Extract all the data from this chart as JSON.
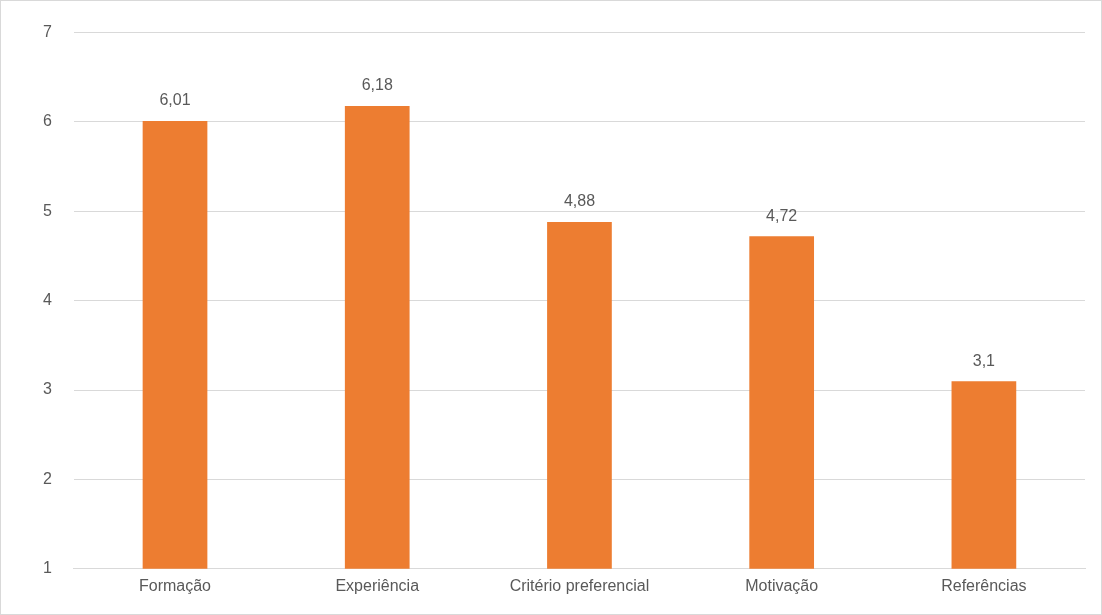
{
  "chart_data": {
    "type": "bar",
    "categories": [
      "Formação",
      "Experiência",
      "Critério preferencial",
      "Motivação",
      "Referências"
    ],
    "values": [
      6.01,
      6.18,
      4.88,
      4.72,
      3.1
    ],
    "value_labels": [
      "6,01",
      "6,18",
      "4,88",
      "4,72",
      "3,1"
    ],
    "color": "#ed7d31",
    "ylim": [
      1,
      7
    ],
    "yticks": [
      1,
      2,
      3,
      4,
      5,
      6,
      7
    ],
    "grid": "y",
    "legend": false
  }
}
